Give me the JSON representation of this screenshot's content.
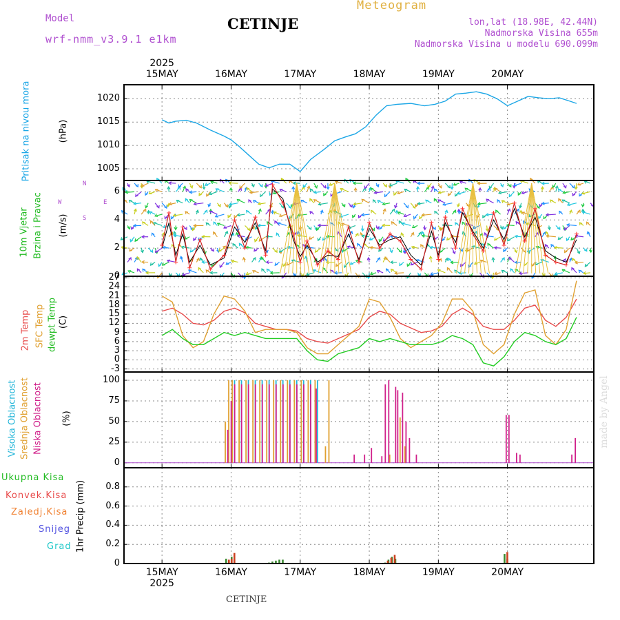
{
  "header": {
    "model_label": "Model",
    "model_value": "wrf-nmm_v3.9.1 e1km",
    "station": "CETINJE",
    "product": "Meteogram",
    "lonlat": "lon,lat (18.98E, 42.44N)",
    "altitude": "Nadmorska Visina 655m",
    "model_altitude": "Nadmorska Visina u modelu 690.099m",
    "footer_station": "CETINJE",
    "watermark": "made by Angel"
  },
  "time_axis": {
    "year": "2025",
    "days": [
      "15MAY",
      "16MAY",
      "17MAY",
      "18MAY",
      "19MAY",
      "20MAY"
    ]
  },
  "colors": {
    "pressure": "#1aa6e6",
    "wind_label": "#22bb22",
    "temp2m": "#e84a4a",
    "sfc": "#e0a030",
    "dewpt": "#22cc22",
    "high_cloud": "#20b4d8",
    "mid_cloud": "#e0a030",
    "low_cloud": "#d0208a",
    "model": "#b050d0"
  },
  "panels": {
    "pressure": {
      "labels": [
        "Pritisak na nivou mora",
        "(hPa)"
      ],
      "ticks": [
        "1005",
        "1010",
        "1015",
        "1020"
      ]
    },
    "wind": {
      "labels": [
        "10m Vjetar",
        "Brzina i Pravac",
        "(m/s)"
      ],
      "ticks": [
        "0",
        "2",
        "4",
        "6"
      ],
      "compass": [
        "N",
        "S",
        "W",
        "E"
      ]
    },
    "temp": {
      "labels": [
        "2m Temp",
        "SFC Temp",
        "dewpt Temp",
        "(C)"
      ],
      "ticks": [
        "-3",
        "0",
        "3",
        "6",
        "9",
        "12",
        "15",
        "18",
        "21",
        "24",
        "27"
      ]
    },
    "cloud": {
      "labels": [
        "Visoka Oblacnost",
        "Srednja Oblacnost",
        "Niska Oblacnost",
        "(%)"
      ],
      "ticks": [
        "0",
        "25",
        "50",
        "75",
        "100"
      ]
    },
    "precip": {
      "labels": [
        "Ukupna Kisa",
        "Konvek.Kisa",
        "Zaledj.Kisa",
        "Snijeg",
        "Grad",
        "1hr Precip (mm)"
      ],
      "ticks": [
        "0",
        "0.2",
        "0.4",
        "0.6",
        "0.8"
      ]
    }
  },
  "chart_data": [
    {
      "type": "line",
      "ylabel": "(hPa)",
      "ylim": [
        1002.5,
        1023
      ],
      "grid": true,
      "series": [
        {
          "name": "Pritisak na nivou mora",
          "x": [
            0,
            0.1,
            0.2,
            0.35,
            0.5,
            0.7,
            0.9,
            1.0,
            1.1,
            1.25,
            1.4,
            1.55,
            1.7,
            1.85,
            2.0,
            2.15,
            2.35,
            2.5,
            2.65,
            2.8,
            2.95,
            3.1,
            3.25,
            3.4,
            3.6,
            3.8,
            3.95,
            4.1,
            4.25,
            4.4,
            4.55,
            4.7,
            4.85,
            5.0,
            5.15,
            5.3,
            5.45,
            5.6,
            5.75,
            5.9,
            6.0
          ],
          "y": [
            1015.5,
            1014.8,
            1015.2,
            1015.4,
            1014.8,
            1013.3,
            1012,
            1011.2,
            1010,
            1008,
            1006,
            1005.2,
            1006,
            1006,
            1004.4,
            1007,
            1009.2,
            1011,
            1011.8,
            1012.5,
            1014,
            1016.5,
            1018.5,
            1018.8,
            1019,
            1018.5,
            1018.8,
            1019.5,
            1021,
            1021.2,
            1021.5,
            1021,
            1020,
            1018.5,
            1019.5,
            1020.5,
            1020.2,
            1020,
            1020.2,
            1019.5,
            1019
          ]
        }
      ]
    },
    {
      "type": "line",
      "ylabel": "(m/s)",
      "ylim": [
        0,
        6.8
      ],
      "grid": true,
      "series": [
        {
          "x": [
            0,
            0.1,
            0.2,
            0.3,
            0.4,
            0.55,
            0.7,
            0.9,
            1.05,
            1.2,
            1.35,
            1.5,
            1.6,
            1.75,
            1.9,
            2.0,
            2.1,
            2.25,
            2.4,
            2.55,
            2.7,
            2.85,
            3.0,
            3.15,
            3.3,
            3.45,
            3.6,
            3.75,
            3.9,
            4.0,
            4.1,
            4.25,
            4.35,
            4.5,
            4.65,
            4.8,
            4.95,
            5.1,
            5.25,
            5.4,
            5.55,
            5.7,
            5.85,
            6.0
          ],
          "y": [
            2.2,
            4.5,
            1.0,
            3.5,
            0.6,
            2.6,
            0.5,
            1.5,
            4.0,
            2.0,
            4.2,
            1.5,
            6.5,
            5.2,
            3.0,
            1.0,
            2.5,
            0.8,
            1.8,
            1.2,
            3.5,
            1.0,
            3.8,
            2.0,
            3.0,
            2.5,
            1.2,
            0.5,
            3.8,
            1.2,
            4.2,
            2.0,
            4.8,
            3.0,
            1.8,
            4.5,
            2.2,
            5.2,
            2.5,
            4.8,
            1.5,
            1.0,
            0.8,
            3.0
          ]
        },
        {
          "x": [
            0,
            0.1,
            0.2,
            0.3,
            0.4,
            0.55,
            0.7,
            0.9,
            1.05,
            1.2,
            1.35,
            1.5,
            1.6,
            1.75,
            1.9,
            2.0,
            2.1,
            2.25,
            2.4,
            2.55,
            2.7,
            2.85,
            3.0,
            3.15,
            3.3,
            3.45,
            3.6,
            3.75,
            3.9,
            4.0,
            4.1,
            4.25,
            4.35,
            4.5,
            4.65,
            4.8,
            4.95,
            5.1,
            5.25,
            5.4,
            5.55,
            5.7,
            5.85,
            6.0
          ],
          "y": [
            2.0,
            3.8,
            1.5,
            3.0,
            1.0,
            2.2,
            0.8,
            1.3,
            3.5,
            2.4,
            3.8,
            1.8,
            6.2,
            5.5,
            2.6,
            1.4,
            2.2,
            1.0,
            1.5,
            1.4,
            3.0,
            1.2,
            3.4,
            2.2,
            2.6,
            2.8,
            1.5,
            0.8,
            3.2,
            1.5,
            3.8,
            2.4,
            4.5,
            3.2,
            2.0,
            4.0,
            2.6,
            4.8,
            2.8,
            4.2,
            1.8,
            1.3,
            1.0,
            2.6
          ]
        }
      ]
    },
    {
      "type": "line",
      "ylabel": "(C)",
      "ylim": [
        -4,
        27.5
      ],
      "grid": true,
      "series": [
        {
          "name": "2m Temp",
          "x": [
            0,
            0.15,
            0.3,
            0.45,
            0.6,
            0.75,
            0.9,
            1.05,
            1.2,
            1.35,
            1.5,
            1.65,
            1.8,
            1.95,
            2.1,
            2.25,
            2.4,
            2.55,
            2.7,
            2.85,
            3.0,
            3.15,
            3.3,
            3.45,
            3.6,
            3.75,
            3.9,
            4.05,
            4.2,
            4.35,
            4.5,
            4.65,
            4.8,
            4.95,
            5.1,
            5.25,
            5.4,
            5.55,
            5.7,
            5.85,
            6.0
          ],
          "y": [
            16,
            17,
            15,
            12,
            11.5,
            13,
            16,
            17,
            15.5,
            12,
            11,
            10,
            10,
            9.5,
            7,
            6,
            5.5,
            7,
            8.5,
            10,
            14,
            16,
            15,
            12,
            10.5,
            9,
            9.5,
            11,
            15,
            17,
            15,
            11,
            10,
            10,
            13,
            17,
            18,
            13,
            11,
            14,
            20
          ]
        },
        {
          "name": "SFC Temp",
          "x": [
            0,
            0.15,
            0.3,
            0.45,
            0.6,
            0.75,
            0.9,
            1.05,
            1.2,
            1.35,
            1.5,
            1.65,
            1.8,
            1.95,
            2.1,
            2.25,
            2.4,
            2.55,
            2.7,
            2.85,
            3.0,
            3.15,
            3.3,
            3.45,
            3.6,
            3.75,
            3.9,
            4.05,
            4.2,
            4.35,
            4.5,
            4.65,
            4.8,
            4.95,
            5.1,
            5.25,
            5.4,
            5.55,
            5.7,
            5.85,
            6.0
          ],
          "y": [
            21,
            19,
            8,
            4,
            6,
            15,
            21,
            20,
            16,
            9,
            10,
            10,
            10,
            9,
            4,
            2,
            2,
            5,
            8,
            11,
            20,
            19,
            14,
            7,
            4,
            6,
            8,
            12,
            20,
            20,
            16,
            5,
            2,
            5,
            15,
            22,
            23,
            8,
            5,
            10,
            26
          ]
        },
        {
          "name": "dewpt Temp",
          "x": [
            0,
            0.15,
            0.3,
            0.45,
            0.6,
            0.75,
            0.9,
            1.05,
            1.2,
            1.35,
            1.5,
            1.65,
            1.8,
            1.95,
            2.1,
            2.25,
            2.4,
            2.55,
            2.7,
            2.85,
            3.0,
            3.15,
            3.3,
            3.45,
            3.6,
            3.75,
            3.9,
            4.05,
            4.2,
            4.35,
            4.5,
            4.65,
            4.8,
            4.95,
            5.1,
            5.25,
            5.4,
            5.55,
            5.7,
            5.85,
            6.0
          ],
          "y": [
            8,
            10,
            7,
            5,
            5,
            7,
            9,
            8,
            9,
            8,
            7,
            7,
            7,
            7,
            3,
            0,
            -0.5,
            2,
            3,
            4,
            7,
            6,
            7,
            6,
            5,
            5,
            5,
            6,
            8,
            7,
            5,
            -1,
            -2,
            1,
            6,
            9,
            8,
            6,
            5,
            7,
            14
          ]
        }
      ]
    },
    {
      "type": "bar",
      "ylabel": "(%)",
      "ylim": [
        -6,
        110
      ],
      "grid": true,
      "series": [
        {
          "name": "Visoka Oblacnost",
          "x": [
            1.05,
            1.15,
            1.25,
            1.35,
            1.45,
            1.55,
            1.65,
            1.75,
            1.85,
            1.95,
            2.05,
            2.15,
            2.25
          ],
          "y": [
            100,
            100,
            100,
            100,
            100,
            100,
            100,
            100,
            100,
            100,
            100,
            100,
            100
          ]
        },
        {
          "name": "Srednja Oblacnost",
          "x": [
            0.9,
            0.95,
            1.0,
            1.1,
            1.2,
            1.3,
            1.4,
            1.5,
            1.6,
            1.7,
            1.8,
            1.9,
            2.0,
            2.1,
            2.2,
            2.35,
            2.4,
            3.28,
            3.43,
            3.5
          ],
          "y": [
            50,
            100,
            100,
            100,
            100,
            100,
            100,
            100,
            100,
            100,
            100,
            100,
            100,
            100,
            100,
            20,
            100,
            10,
            55,
            20
          ]
        },
        {
          "name": "Niska Oblacnost",
          "x": [
            0.92,
            0.97,
            1.02,
            1.12,
            1.22,
            1.32,
            1.42,
            1.52,
            1.62,
            1.72,
            1.82,
            1.92,
            2.02,
            2.12,
            2.2,
            2.75,
            2.9,
            3.0,
            3.15,
            3.2,
            3.25,
            3.35,
            3.38,
            3.45,
            3.5,
            3.55,
            3.65,
            4.95,
            4.99,
            5.1,
            5.15,
            5.9,
            5.95
          ],
          "y": [
            40,
            75,
            95,
            95,
            95,
            95,
            95,
            95,
            95,
            95,
            95,
            95,
            95,
            95,
            90,
            10,
            10,
            18,
            8,
            95,
            100,
            92,
            88,
            85,
            50,
            30,
            10,
            58,
            58,
            12,
            10,
            10,
            30
          ]
        }
      ]
    },
    {
      "type": "bar",
      "ylabel": "1hr Precip (mm)",
      "ylim": [
        0,
        1.0
      ],
      "grid": true,
      "series": [
        {
          "name": "Ukupna Kisa",
          "x": [
            0.93,
            0.97,
            1.01,
            1.05,
            1.55,
            1.6,
            1.65,
            1.7,
            1.75,
            3.23,
            3.28,
            3.33,
            3.38,
            4.96,
            5.0
          ],
          "y": [
            0.05,
            0.03,
            0.07,
            0.04,
            0.01,
            0.02,
            0.03,
            0.04,
            0.04,
            0.01,
            0.04,
            0.07,
            0.05,
            0.1,
            0.05
          ]
        },
        {
          "name": "Konvek.Kisa",
          "x": [
            0.95,
            0.99,
            1.03,
            3.25,
            3.3,
            3.35,
            4.98
          ],
          "y": [
            0.04,
            0.05,
            0.11,
            0.03,
            0.06,
            0.09,
            0.12
          ]
        }
      ]
    }
  ]
}
